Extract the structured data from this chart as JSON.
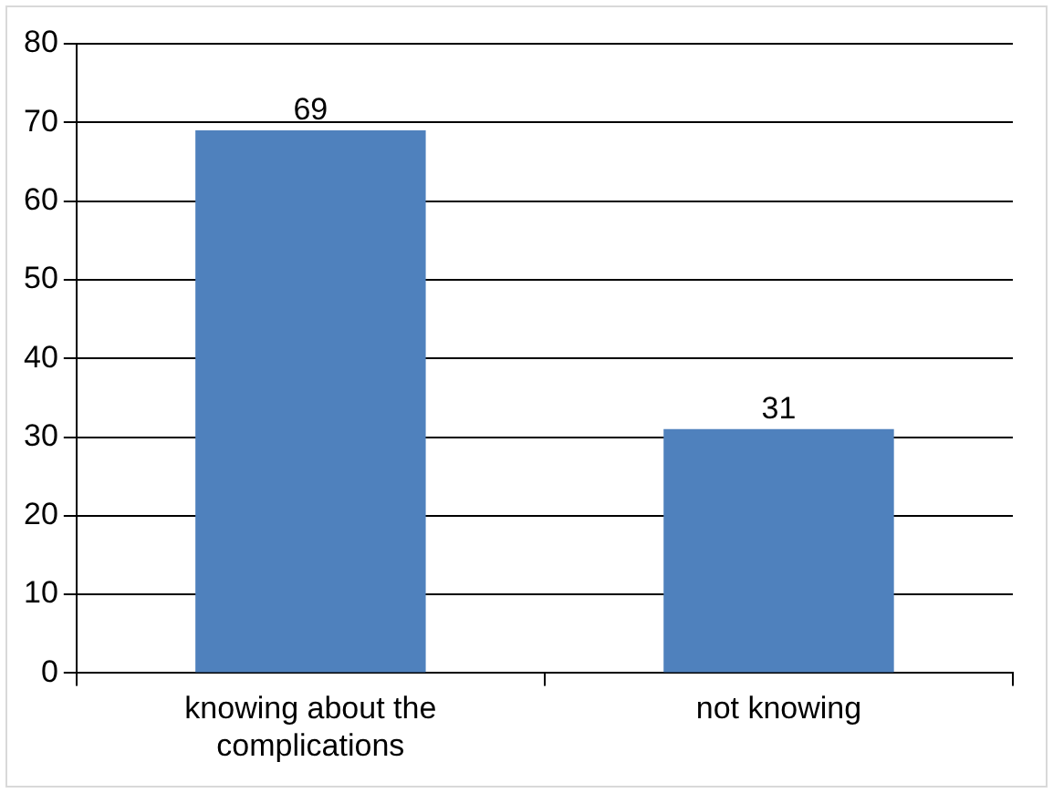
{
  "chart_data": {
    "type": "bar",
    "categories": [
      "knowing about the complications",
      "not knowing"
    ],
    "values": [
      69,
      31
    ],
    "color": "#4f81bd",
    "ylim": [
      0,
      80
    ],
    "yticks": [
      0,
      10,
      20,
      30,
      40,
      50,
      60,
      70,
      80
    ],
    "grid": "y",
    "data_labels": true,
    "legend": false
  }
}
